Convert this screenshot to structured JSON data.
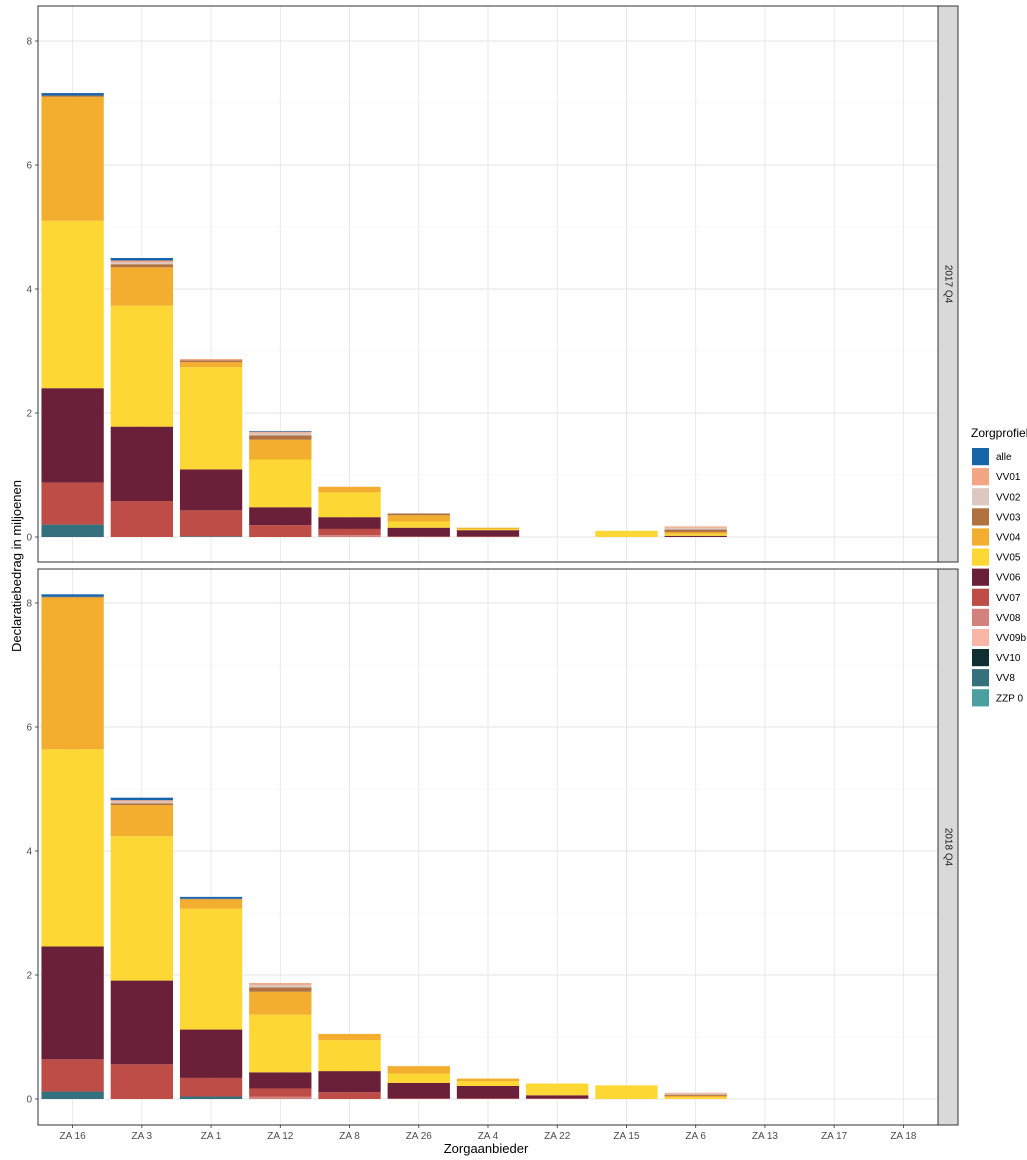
{
  "chart_data": {
    "type": "bar",
    "stacked": true,
    "title": "",
    "xlabel": "Zorgaanbieder",
    "ylabel": "Declaratiebedrag in miljoenen",
    "ylim": [
      0,
      8.4
    ],
    "yticks": [
      0,
      2,
      4,
      6,
      8
    ],
    "grid": true,
    "legend_position": "right",
    "legend_title": "Zorgprofiel",
    "categories": [
      "ZA 16",
      "ZA 3",
      "ZA 1",
      "ZA 12",
      "ZA 8",
      "ZA 26",
      "ZA 4",
      "ZA 22",
      "ZA 15",
      "ZA 6",
      "ZA 13",
      "ZA 17",
      "ZA 18"
    ],
    "profiles": [
      {
        "name": "alle",
        "color": "#1764AB"
      },
      {
        "name": "VV01",
        "color": "#F2A683"
      },
      {
        "name": "VV02",
        "color": "#DBC8C1"
      },
      {
        "name": "VV03",
        "color": "#B07241"
      },
      {
        "name": "VV04",
        "color": "#F4AE2F"
      },
      {
        "name": "VV05",
        "color": "#FDD835"
      },
      {
        "name": "VV06",
        "color": "#6B2039"
      },
      {
        "name": "VV07",
        "color": "#BF4D47"
      },
      {
        "name": "VV08",
        "color": "#D3817A"
      },
      {
        "name": "VV09b",
        "color": "#F9B6A7"
      },
      {
        "name": "VV10",
        "color": "#0E3032"
      },
      {
        "name": "VV8",
        "color": "#35707F"
      },
      {
        "name": "ZZP 0",
        "color": "#4A9FA1"
      }
    ],
    "panels": [
      {
        "label": "2017 Q4",
        "series": [
          {
            "name": "alle",
            "values": [
              0.04,
              0.04,
              0,
              0.01,
              0,
              0,
              0,
              0,
              0,
              0,
              0,
              0,
              0
            ]
          },
          {
            "name": "VV01",
            "values": [
              0,
              0.03,
              0.02,
              0.02,
              0,
              0,
              0,
              0,
              0,
              0.02,
              0,
              0,
              0
            ]
          },
          {
            "name": "VV02",
            "values": [
              0,
              0.03,
              0,
              0.04,
              0,
              0,
              0,
              0,
              0,
              0.03,
              0,
              0,
              0
            ]
          },
          {
            "name": "VV03",
            "values": [
              0.02,
              0.05,
              0.03,
              0.07,
              0,
              0.03,
              0,
              0,
              0,
              0.04,
              0,
              0,
              0
            ]
          },
          {
            "name": "VV04",
            "values": [
              2.0,
              0.62,
              0.08,
              0.32,
              0.09,
              0.1,
              0.02,
              0,
              0,
              0.03,
              0,
              0,
              0
            ]
          },
          {
            "name": "VV05",
            "values": [
              2.7,
              1.95,
              1.65,
              0.77,
              0.4,
              0.1,
              0.02,
              0,
              0.1,
              0.03,
              0,
              0,
              0
            ]
          },
          {
            "name": "VV06",
            "values": [
              1.52,
              1.2,
              0.66,
              0.29,
              0.19,
              0.14,
              0.1,
              0,
              0,
              0.02,
              0,
              0,
              0
            ]
          },
          {
            "name": "VV07",
            "values": [
              0.68,
              0.58,
              0.42,
              0.19,
              0.1,
              0.01,
              0.01,
              0,
              0,
              0,
              0,
              0,
              0
            ]
          },
          {
            "name": "VV08",
            "values": [
              0,
              0,
              0,
              0,
              0.03,
              0,
              0,
              0,
              0,
              0,
              0,
              0,
              0
            ]
          },
          {
            "name": "VV09b",
            "values": [
              0,
              0,
              0,
              0,
              0,
              0,
              0,
              0,
              0,
              0,
              0,
              0,
              0
            ]
          },
          {
            "name": "VV10",
            "values": [
              0,
              0,
              0,
              0,
              0,
              0,
              0,
              0,
              0,
              0,
              0,
              0,
              0
            ]
          },
          {
            "name": "VV8",
            "values": [
              0.2,
              0,
              0.01,
              0,
              0,
              0,
              0,
              0,
              0,
              0,
              0,
              0,
              0
            ]
          },
          {
            "name": "ZZP 0",
            "values": [
              0,
              0,
              0,
              0,
              0,
              0,
              0,
              0,
              0,
              0,
              0,
              0,
              0
            ]
          }
        ]
      },
      {
        "label": "2018 Q4",
        "series": [
          {
            "name": "alle",
            "values": [
              0.04,
              0.04,
              0.03,
              0,
              0,
              0,
              0,
              0,
              0,
              0,
              0,
              0,
              0
            ]
          },
          {
            "name": "VV01",
            "values": [
              0,
              0.02,
              0,
              0.03,
              0,
              0,
              0,
              0,
              0,
              0.01,
              0,
              0,
              0
            ]
          },
          {
            "name": "VV02",
            "values": [
              0,
              0.03,
              0,
              0.04,
              0,
              0,
              0,
              0,
              0,
              0.02,
              0,
              0,
              0
            ]
          },
          {
            "name": "VV03",
            "values": [
              0.01,
              0.03,
              0.01,
              0.07,
              0,
              0,
              0,
              0,
              0,
              0.02,
              0,
              0,
              0
            ]
          },
          {
            "name": "VV04",
            "values": [
              2.45,
              0.5,
              0.15,
              0.37,
              0.1,
              0.12,
              0.04,
              0,
              0,
              0.02,
              0,
              0,
              0
            ]
          },
          {
            "name": "VV05",
            "values": [
              3.18,
              2.33,
              1.95,
              0.93,
              0.5,
              0.15,
              0.08,
              0.19,
              0.22,
              0.03,
              0,
              0,
              0
            ]
          },
          {
            "name": "VV06",
            "values": [
              1.82,
              1.35,
              0.78,
              0.26,
              0.34,
              0.25,
              0.2,
              0.05,
              0,
              0,
              0,
              0,
              0
            ]
          },
          {
            "name": "VV07",
            "values": [
              0.52,
              0.56,
              0.3,
              0.13,
              0.11,
              0.01,
              0.01,
              0.01,
              0,
              0,
              0,
              0,
              0
            ]
          },
          {
            "name": "VV08",
            "values": [
              0,
              0,
              0,
              0.04,
              0,
              0,
              0,
              0,
              0,
              0,
              0,
              0,
              0
            ]
          },
          {
            "name": "VV09b",
            "values": [
              0,
              0,
              0,
              0,
              0,
              0,
              0,
              0,
              0,
              0,
              0,
              0,
              0
            ]
          },
          {
            "name": "VV10",
            "values": [
              0,
              0,
              0,
              0,
              0,
              0,
              0,
              0,
              0,
              0,
              0,
              0,
              0
            ]
          },
          {
            "name": "VV8",
            "values": [
              0.12,
              0,
              0.04,
              0,
              0,
              0,
              0,
              0,
              0,
              0,
              0,
              0,
              0
            ]
          },
          {
            "name": "ZZP 0",
            "values": [
              0,
              0,
              0,
              0,
              0,
              0,
              0,
              0,
              0,
              0,
              0,
              0,
              0
            ]
          }
        ]
      }
    ]
  }
}
